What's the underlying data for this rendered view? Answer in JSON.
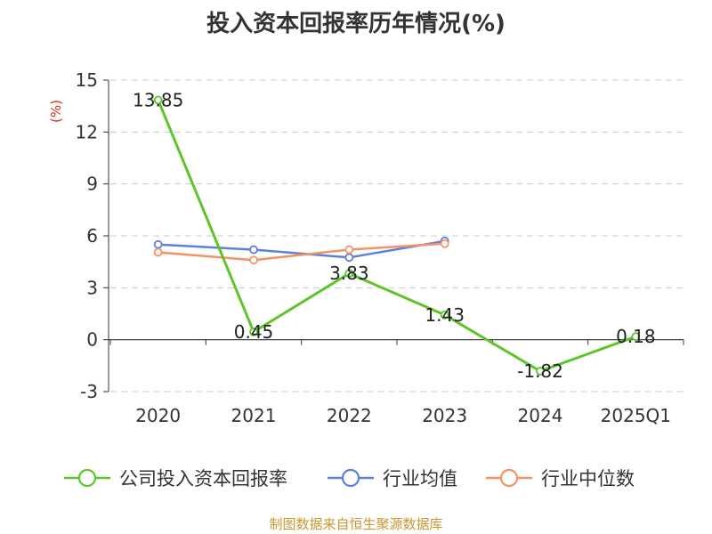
{
  "title": "投入资本回报率历年情况(%)",
  "source": "制图数据来自恒生聚源数据库",
  "chart_data": {
    "type": "line",
    "title": "投入资本回报率历年情况(%)",
    "ylabel": "(%)",
    "xlabel": "",
    "categories": [
      "2020",
      "2021",
      "2022",
      "2023",
      "2024",
      "2025Q1"
    ],
    "ylim": [
      -3,
      15
    ],
    "yticks": [
      -3,
      0,
      3,
      6,
      9,
      12,
      15
    ],
    "grid": true,
    "legend_position": "bottom",
    "series": [
      {
        "name": "公司投入资本回报率",
        "color": "#5cc52b",
        "values": [
          13.85,
          0.45,
          3.83,
          1.43,
          -1.82,
          0.18
        ],
        "labels": [
          "13.85",
          "0.45",
          "3.83",
          "1.43",
          "-1.82",
          "0.18"
        ]
      },
      {
        "name": "行业均值",
        "color": "#5a82d9",
        "values": [
          5.5,
          5.2,
          4.75,
          5.7,
          null,
          null
        ]
      },
      {
        "name": "行业中位数",
        "color": "#f59262",
        "values": [
          5.05,
          4.6,
          5.2,
          5.55,
          null,
          null
        ]
      }
    ],
    "colors": {
      "axis": "#333333",
      "grid": "#cccccc",
      "ylabel": "#e0281c"
    }
  }
}
